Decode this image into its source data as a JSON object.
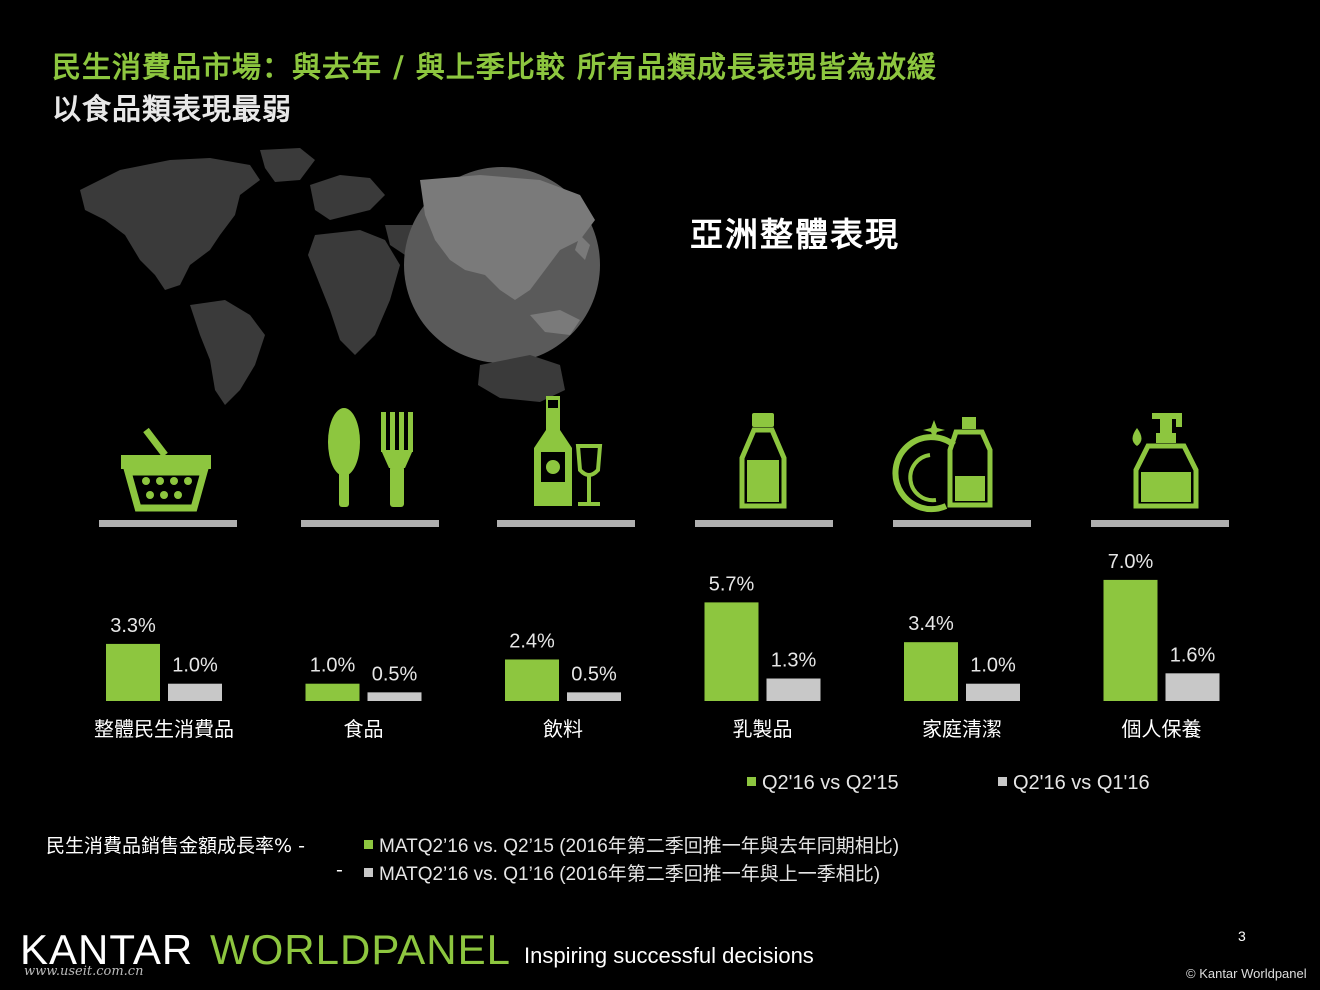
{
  "title": {
    "line1": "民生消費品市場：與去年 / 與上季比較  所有品類成長表現皆為放緩",
    "line2": "以食品類表現最弱"
  },
  "region_title": "亞洲整體表現",
  "colors": {
    "accent": "#8dc63f",
    "secondary": "#c8c8c8",
    "background": "#000000"
  },
  "category_icons": [
    "shopping-basket-icon",
    "spoon-fork-icon",
    "wine-bottle-glass-icon",
    "milk-bottle-icon",
    "dish-detergent-icon",
    "lotion-pump-icon"
  ],
  "chart_data": {
    "type": "bar",
    "categories": [
      "整體民生消費品",
      "食品",
      "飲料",
      "乳製品",
      "家庭清潔",
      "個人保養"
    ],
    "series": [
      {
        "name": "Q2'16 vs Q2'15",
        "values": [
          3.3,
          1.0,
          2.4,
          5.7,
          3.4,
          7.0
        ],
        "labels": [
          "3.3%",
          "1.0%",
          "2.4%",
          "5.7%",
          "3.4%",
          "7.0%"
        ],
        "color": "#8dc63f"
      },
      {
        "name": "Q2'16 vs Q1'16",
        "values": [
          1.0,
          0.5,
          0.5,
          1.3,
          1.0,
          1.6
        ],
        "labels": [
          "1.0%",
          "0.5%",
          "0.5%",
          "1.3%",
          "1.0%",
          "1.6%"
        ],
        "color": "#c8c8c8"
      }
    ],
    "legend": "bottom-right",
    "grid": false
  },
  "footnote": {
    "label": "民生消費品銷售金額成長率% -",
    "dash": "-",
    "line1": "MATQ2’16 vs. Q2’15 (2016年第二季回推一年與去年同期相比)",
    "line2": "MATQ2’16 vs. Q1’16 (2016年第二季回推一年與上一季相比)"
  },
  "brand": {
    "kantar": "KANTAR",
    "worldpanel": "WORLDPANEL",
    "tagline": "Inspiring successful decisions"
  },
  "page_number": "3",
  "copyright": "© Kantar Worldpanel",
  "watermark": "www.useit.com.cn"
}
